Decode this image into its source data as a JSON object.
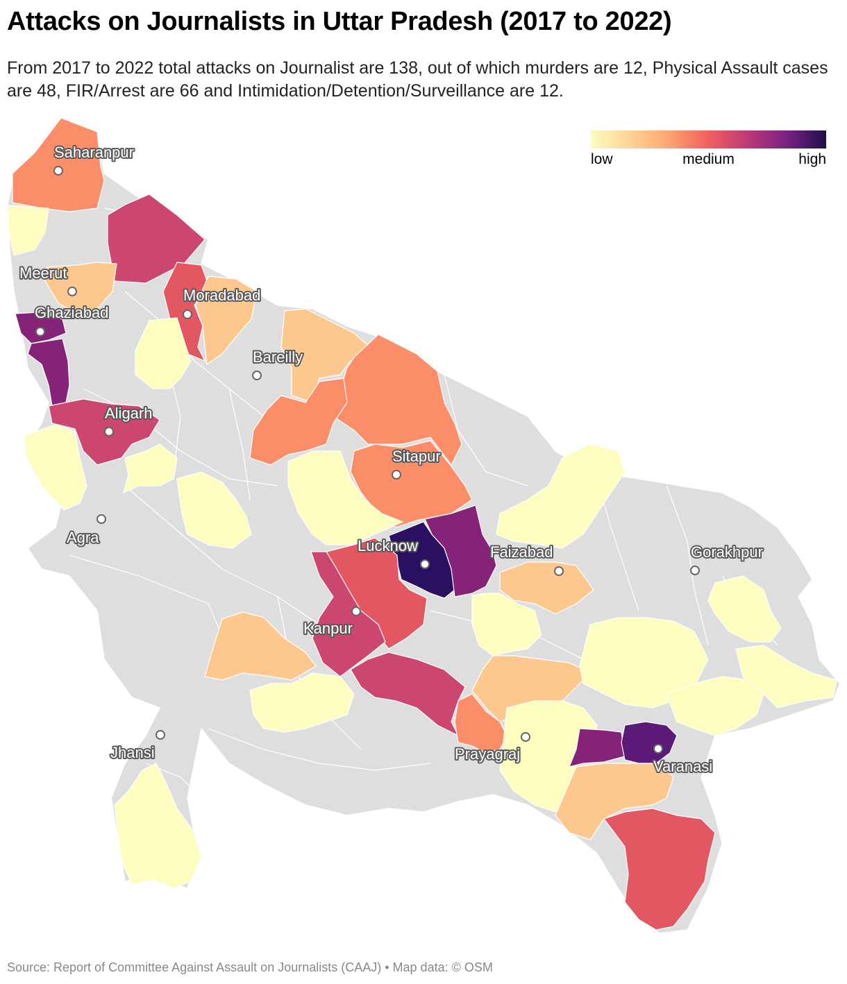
{
  "title": "Attacks on Journalists in Uttar Pradesh (2017 to 2022)",
  "subtitle": "From 2017 to 2022 total attacks on Journalist are 138, out of which murders are 12, Physical Assault cases are 48, FIR/Arrest are 66 and Intimidation/Detention/Surveillance are 12.",
  "legend": {
    "low": "low",
    "medium": "medium",
    "high": "high"
  },
  "colors": {
    "no_data": "#dedede",
    "low": "#fcfdbf",
    "low_mid": "#fdc88e",
    "mid": "#fb8d68",
    "mid_high": "#e35763",
    "high_mid": "#cb4770",
    "high": "#852379",
    "highest": "#2a1060"
  },
  "cities": [
    {
      "name": "Saharanpur"
    },
    {
      "name": "Meerut"
    },
    {
      "name": "Ghaziabad"
    },
    {
      "name": "Moradabad"
    },
    {
      "name": "Bareilly"
    },
    {
      "name": "Aligarh"
    },
    {
      "name": "Sitapur"
    },
    {
      "name": "Agra"
    },
    {
      "name": "Lucknow"
    },
    {
      "name": "Faizabad"
    },
    {
      "name": "Gorakhpur"
    },
    {
      "name": "Kanpur"
    },
    {
      "name": "Jhansi"
    },
    {
      "name": "Prayagraj"
    },
    {
      "name": "Varanasi"
    }
  ],
  "source": "Source: Report of Committee Against Assault on Journalists (CAAJ) • Map data: © OSM"
}
